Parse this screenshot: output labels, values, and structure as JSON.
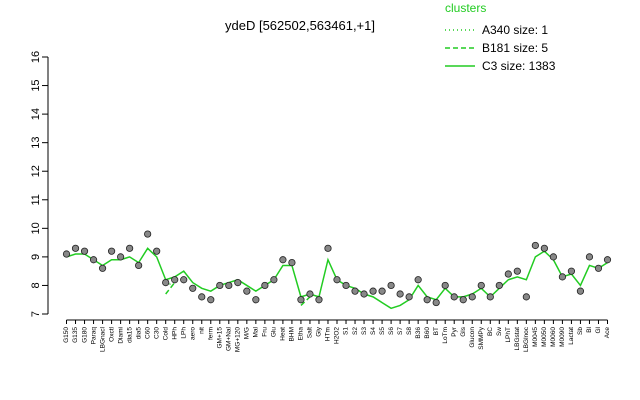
{
  "chart_data": {
    "type": "line",
    "title": "ydeD [562502,563461,+1]",
    "legend_title": "clusters",
    "legend_position": "top-right",
    "categories": [
      "G150",
      "G135",
      "G180",
      "Paraq",
      "LBGnacl",
      "Oxctl",
      "Diami",
      "dia15",
      "dia5",
      "C60",
      "C30",
      "Cold",
      "HPh",
      "LPh",
      "aero",
      "nit",
      "ferm",
      "GM+15",
      "GM+Nal",
      "MG+120",
      "M/G",
      "Mal",
      "Fru",
      "Glu",
      "Heat",
      "BHM",
      "Etha",
      "Salt",
      "Gly",
      "HTm",
      "H2O2",
      "S1",
      "S2",
      "S3",
      "S4",
      "S5",
      "S6",
      "S7",
      "S8",
      "B36",
      "B60",
      "BT",
      "LoTm",
      "Pyr",
      "Gls",
      "Glucon",
      "SMMPy",
      "BC",
      "Sw",
      "LPhT",
      "LBGstat",
      "LBGlnoc",
      "M0045",
      "M0050",
      "M0060",
      "M0090",
      "Lactat",
      "Sb",
      "Bl",
      "Gl",
      "Ace"
    ],
    "points": {
      "color": "#888888",
      "values": [
        9.1,
        9.3,
        9.2,
        8.9,
        8.6,
        9.2,
        9.0,
        9.3,
        8.7,
        9.8,
        9.2,
        8.1,
        8.2,
        8.2,
        7.9,
        7.6,
        7.5,
        8.0,
        8.0,
        8.1,
        7.8,
        7.5,
        8.0,
        8.2,
        8.9,
        8.8,
        7.5,
        7.7,
        7.5,
        9.3,
        8.2,
        8.0,
        7.8,
        7.7,
        7.8,
        7.8,
        8.0,
        7.7,
        7.6,
        8.2,
        7.5,
        7.4,
        8.0,
        7.6,
        7.5,
        7.6,
        8.0,
        7.6,
        8.0,
        8.4,
        8.5,
        7.6,
        9.4,
        9.3,
        9.0,
        8.3,
        8.5,
        7.8,
        9.0,
        8.6,
        8.9
      ]
    },
    "series": [
      {
        "name": "A340 size: 1",
        "color": "#22cc22",
        "dash": "dotted",
        "values": [
          null,
          null,
          null,
          null,
          null,
          null,
          null,
          null,
          null,
          null,
          null,
          8.0,
          8.1,
          null,
          null,
          null,
          null,
          null,
          null,
          null,
          null,
          null,
          null,
          null,
          null,
          null,
          null,
          null,
          null,
          null,
          null,
          null,
          null,
          null,
          null,
          null,
          null,
          null,
          null,
          null,
          null,
          null,
          null,
          null,
          null,
          null,
          null,
          null,
          null,
          null,
          null,
          null,
          null,
          null,
          null,
          null,
          null,
          null,
          null,
          null,
          null
        ]
      },
      {
        "name": "B181 size: 5",
        "color": "#22cc22",
        "dash": "dashed",
        "values": [
          null,
          null,
          null,
          null,
          null,
          null,
          null,
          null,
          null,
          null,
          null,
          7.7,
          8.1,
          null,
          null,
          null,
          null,
          null,
          null,
          null,
          null,
          null,
          null,
          null,
          null,
          null,
          7.3,
          7.6,
          null,
          null,
          null,
          null,
          null,
          null,
          null,
          null,
          null,
          null,
          null,
          null,
          null,
          null,
          null,
          null,
          null,
          null,
          null,
          null,
          null,
          null,
          null,
          null,
          null,
          null,
          null,
          null,
          null,
          null,
          null,
          null,
          null
        ]
      },
      {
        "name": "C3 size: 1383",
        "color": "#22cc22",
        "dash": "solid",
        "values": [
          9.0,
          9.1,
          9.1,
          8.9,
          8.7,
          8.9,
          8.9,
          9.0,
          8.8,
          9.3,
          9.0,
          8.2,
          8.3,
          8.5,
          8.1,
          7.9,
          7.8,
          8.0,
          8.1,
          8.2,
          8.0,
          7.8,
          8.0,
          8.2,
          8.7,
          8.7,
          7.6,
          7.7,
          7.6,
          8.9,
          8.2,
          8.0,
          7.9,
          7.7,
          7.6,
          7.4,
          7.2,
          7.3,
          7.5,
          8.0,
          7.6,
          7.5,
          7.9,
          7.6,
          7.6,
          7.7,
          7.9,
          7.6,
          7.9,
          8.2,
          8.3,
          8.2,
          9.0,
          9.2,
          8.9,
          8.3,
          8.4,
          8.0,
          8.7,
          8.6,
          8.8
        ]
      }
    ],
    "ylim": [
      7,
      16
    ],
    "yticks": [
      7,
      8,
      9,
      10,
      11,
      12,
      13,
      14,
      15,
      16
    ]
  }
}
